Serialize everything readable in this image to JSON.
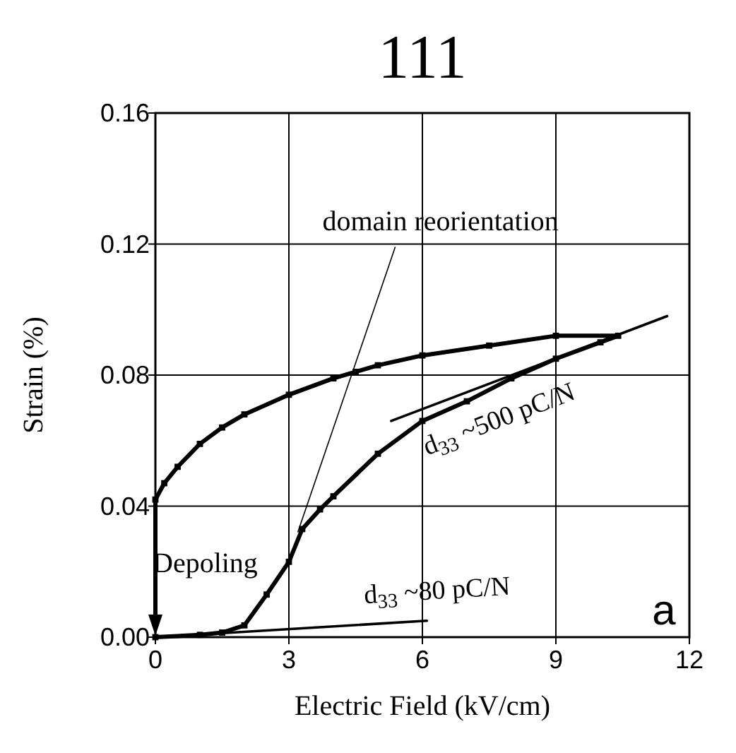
{
  "chart_data": {
    "type": "line",
    "title": "111",
    "xlabel": "Electric Field (kV/cm)",
    "ylabel": "Strain (%)",
    "xlim": [
      0,
      12
    ],
    "xticks": [
      0,
      3,
      6,
      9,
      12
    ],
    "ylim": [
      0,
      0.16
    ],
    "yticks": [
      {
        "value": 0,
        "label": "0.00"
      },
      {
        "value": 0.04,
        "label": "0.04"
      },
      {
        "value": 0.08,
        "label": "0.08"
      },
      {
        "value": 0.12,
        "label": "0.12"
      },
      {
        "value": 0.16,
        "label": "0.16"
      }
    ],
    "grid": true,
    "series": [
      {
        "color": "#000000",
        "marker": "square",
        "x": [
          0,
          1,
          1.5,
          2,
          2.5,
          3,
          3.3,
          3.7,
          4,
          5,
          6,
          7,
          8,
          9,
          10,
          10.4,
          9,
          7.5,
          6,
          5,
          4.5,
          4,
          3,
          2,
          1.5,
          1,
          0.5,
          0.2,
          0
        ],
        "values": [
          0,
          0.0007,
          0.0014,
          0.0036,
          0.013,
          0.023,
          0.033,
          0.039,
          0.043,
          0.056,
          0.066,
          0.072,
          0.079,
          0.085,
          0.09,
          0.092,
          0.092,
          0.089,
          0.086,
          0.083,
          0.081,
          0.079,
          0.074,
          0.068,
          0.064,
          0.059,
          0.052,
          0.047,
          0.042
        ]
      },
      {
        "name": "d$_{33}$ ~500 pC/N",
        "color": "#000000",
        "marker": "none",
        "x": [
          5.3,
          11.5
        ],
        "values": [
          0.066,
          0.098
        ]
      },
      {
        "name": "d$_{33}$ ~80 pC/N",
        "color": "#000000",
        "marker": "none",
        "x": [
          0,
          6.1
        ],
        "values": [
          0,
          0.005
        ]
      }
    ],
    "annotations": [
      {
        "text": "domain reorientation",
        "x": 3.2,
        "y": 0.032
      },
      "Depoling",
      "a"
    ]
  }
}
